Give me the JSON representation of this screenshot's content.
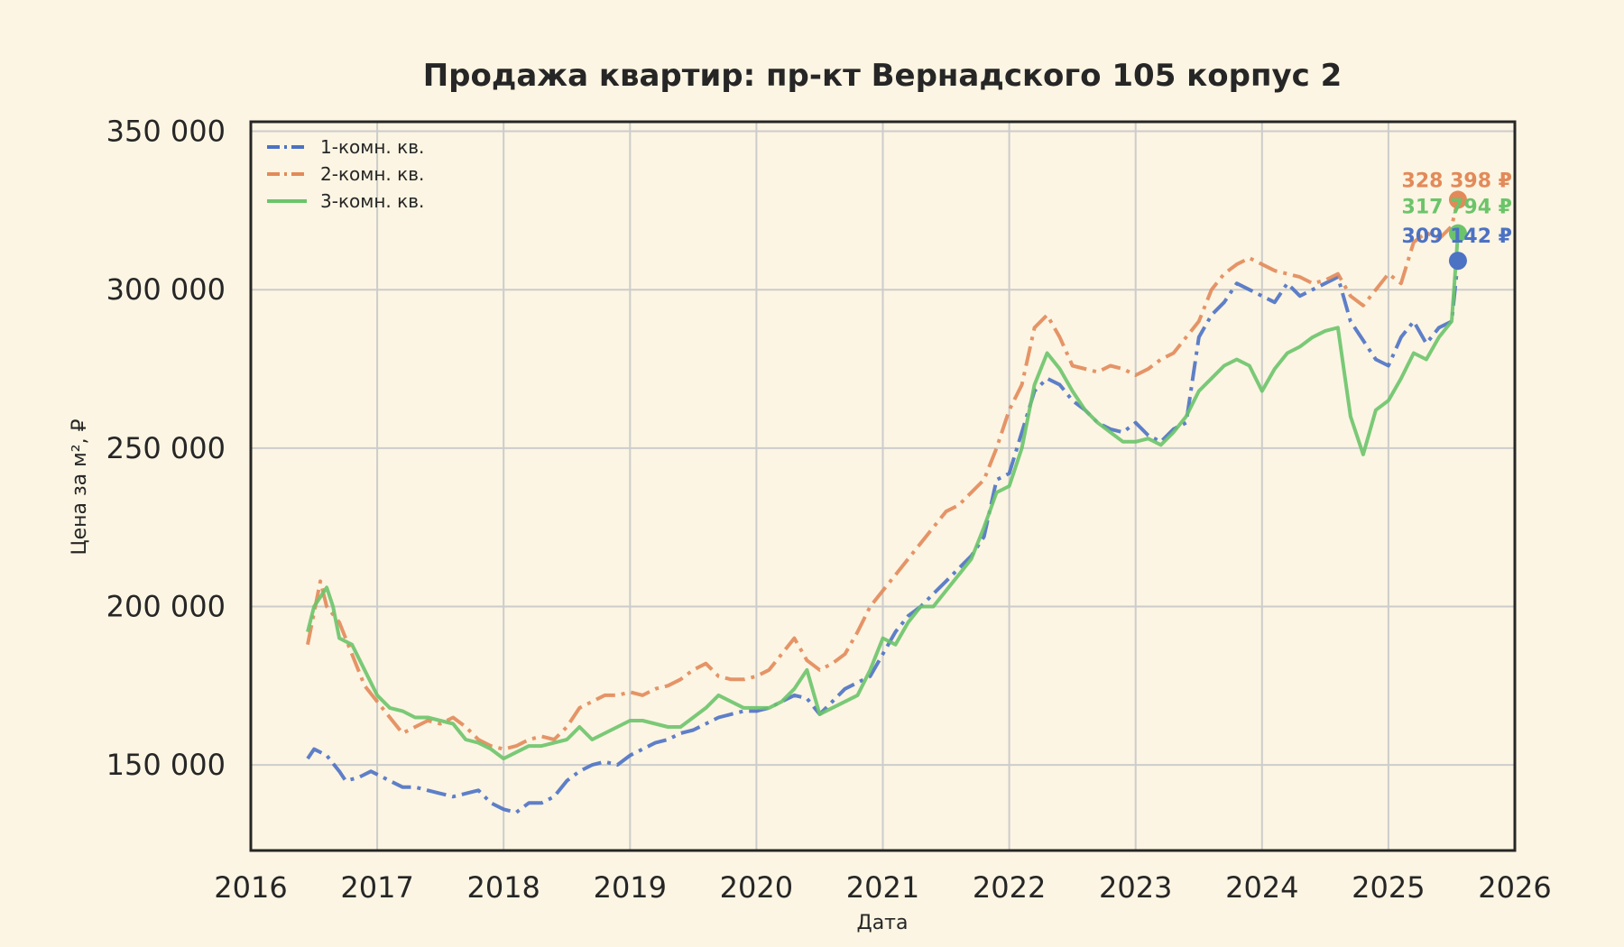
{
  "chart_data": {
    "type": "line",
    "title": "Продажа квартир: пр-кт Вернадского 105 корпус 2",
    "xlabel": "Дата",
    "ylabel": "Цена за м², ₽",
    "xlim": [
      2016.0,
      2026.0
    ],
    "ylim": [
      123000,
      353000
    ],
    "x_ticks": [
      "2016",
      "2017",
      "2018",
      "2019",
      "2020",
      "2021",
      "2022",
      "2023",
      "2024",
      "2025",
      "2026"
    ],
    "y_ticks": [
      {
        "value": 150000,
        "label": "150 000"
      },
      {
        "value": 200000,
        "label": "200 000"
      },
      {
        "value": 250000,
        "label": "250 000"
      },
      {
        "value": 300000,
        "label": "300 000"
      },
      {
        "value": 350000,
        "label": "350 000"
      }
    ],
    "grid": true,
    "legend_position": "top-left",
    "series": [
      {
        "name": "1-комн. кв.",
        "color": "#4c72c4",
        "dash": "dashdot",
        "x": [
          2016.45,
          2016.5,
          2016.6,
          2016.7,
          2016.75,
          2016.85,
          2016.95,
          2017.0,
          2017.1,
          2017.2,
          2017.3,
          2017.4,
          2017.5,
          2017.6,
          2017.7,
          2017.8,
          2017.9,
          2018.0,
          2018.1,
          2018.2,
          2018.3,
          2018.4,
          2018.5,
          2018.6,
          2018.7,
          2018.8,
          2018.9,
          2019.0,
          2019.1,
          2019.2,
          2019.3,
          2019.4,
          2019.5,
          2019.6,
          2019.7,
          2019.8,
          2019.9,
          2020.0,
          2020.1,
          2020.2,
          2020.3,
          2020.4,
          2020.5,
          2020.6,
          2020.7,
          2020.8,
          2020.9,
          2021.0,
          2021.1,
          2021.2,
          2021.3,
          2021.4,
          2021.5,
          2021.6,
          2021.7,
          2021.8,
          2021.9,
          2022.0,
          2022.1,
          2022.2,
          2022.3,
          2022.4,
          2022.5,
          2022.6,
          2022.7,
          2022.8,
          2022.9,
          2023.0,
          2023.1,
          2023.2,
          2023.3,
          2023.4,
          2023.5,
          2023.6,
          2023.7,
          2023.8,
          2023.9,
          2024.0,
          2024.1,
          2024.2,
          2024.3,
          2024.4,
          2024.5,
          2024.6,
          2024.7,
          2024.8,
          2024.9,
          2025.0,
          2025.1,
          2025.2,
          2025.3,
          2025.4,
          2025.5,
          2025.55
        ],
        "values": [
          152000,
          155000,
          153000,
          148000,
          145000,
          146000,
          148000,
          147000,
          145000,
          143000,
          143000,
          142000,
          141000,
          140000,
          141000,
          142000,
          138000,
          136000,
          135000,
          138000,
          138000,
          140000,
          145000,
          148000,
          150000,
          151000,
          150000,
          153000,
          155000,
          157000,
          158000,
          160000,
          161000,
          163000,
          165000,
          166000,
          167000,
          167000,
          168000,
          170000,
          172000,
          171000,
          166000,
          170000,
          174000,
          176000,
          178000,
          185000,
          192000,
          197000,
          200000,
          204000,
          208000,
          212000,
          216000,
          222000,
          240000,
          242000,
          255000,
          268000,
          272000,
          270000,
          265000,
          262000,
          258000,
          256000,
          255000,
          258000,
          254000,
          252000,
          256000,
          258000,
          285000,
          292000,
          296000,
          302000,
          300000,
          298000,
          296000,
          302000,
          298000,
          300000,
          302000,
          304000,
          290000,
          284000,
          278000,
          276000,
          285000,
          290000,
          283000,
          288000,
          290000,
          309142
        ]
      },
      {
        "name": "2-комн. кв.",
        "color": "#e28a59",
        "dash": "dashdot",
        "x": [
          2016.45,
          2016.55,
          2016.6,
          2016.7,
          2016.8,
          2016.9,
          2017.0,
          2017.1,
          2017.2,
          2017.3,
          2017.4,
          2017.5,
          2017.6,
          2017.7,
          2017.8,
          2017.9,
          2018.0,
          2018.1,
          2018.2,
          2018.3,
          2018.4,
          2018.5,
          2018.6,
          2018.7,
          2018.8,
          2018.9,
          2019.0,
          2019.1,
          2019.2,
          2019.3,
          2019.4,
          2019.5,
          2019.6,
          2019.7,
          2019.8,
          2019.9,
          2020.0,
          2020.1,
          2020.2,
          2020.3,
          2020.4,
          2020.5,
          2020.6,
          2020.7,
          2020.8,
          2020.9,
          2021.0,
          2021.1,
          2021.2,
          2021.3,
          2021.4,
          2021.5,
          2021.6,
          2021.7,
          2021.8,
          2021.9,
          2022.0,
          2022.1,
          2022.2,
          2022.3,
          2022.4,
          2022.5,
          2022.6,
          2022.7,
          2022.8,
          2022.9,
          2023.0,
          2023.1,
          2023.2,
          2023.3,
          2023.4,
          2023.5,
          2023.6,
          2023.7,
          2023.8,
          2023.9,
          2024.0,
          2024.1,
          2024.2,
          2024.3,
          2024.4,
          2024.5,
          2024.6,
          2024.7,
          2024.8,
          2024.9,
          2025.0,
          2025.1,
          2025.2,
          2025.3,
          2025.4,
          2025.5,
          2025.55
        ],
        "values": [
          188000,
          208000,
          200000,
          195000,
          185000,
          175000,
          170000,
          165000,
          160000,
          162000,
          164000,
          163000,
          165000,
          162000,
          158000,
          156000,
          155000,
          156000,
          158000,
          159000,
          158000,
          162000,
          168000,
          170000,
          172000,
          172000,
          173000,
          172000,
          174000,
          175000,
          177000,
          180000,
          182000,
          178000,
          177000,
          177000,
          178000,
          180000,
          185000,
          190000,
          183000,
          180000,
          182000,
          185000,
          192000,
          200000,
          205000,
          210000,
          215000,
          220000,
          225000,
          230000,
          232000,
          236000,
          240000,
          250000,
          262000,
          270000,
          288000,
          292000,
          285000,
          276000,
          275000,
          274000,
          276000,
          275000,
          273000,
          275000,
          278000,
          280000,
          285000,
          290000,
          300000,
          305000,
          308000,
          310000,
          308000,
          306000,
          305000,
          304000,
          302000,
          303000,
          305000,
          298000,
          295000,
          300000,
          305000,
          302000,
          315000,
          318000,
          316000,
          320000,
          328398
        ]
      },
      {
        "name": "3-комн. кв.",
        "color": "#6cc46a",
        "dash": "solid",
        "x": [
          2016.45,
          2016.5,
          2016.6,
          2016.65,
          2016.7,
          2016.8,
          2016.9,
          2017.0,
          2017.1,
          2017.2,
          2017.3,
          2017.4,
          2017.5,
          2017.6,
          2017.7,
          2017.8,
          2017.9,
          2018.0,
          2018.1,
          2018.2,
          2018.3,
          2018.4,
          2018.5,
          2018.6,
          2018.7,
          2018.8,
          2018.9,
          2019.0,
          2019.1,
          2019.2,
          2019.3,
          2019.4,
          2019.5,
          2019.6,
          2019.7,
          2019.8,
          2019.9,
          2020.0,
          2020.1,
          2020.2,
          2020.3,
          2020.4,
          2020.5,
          2020.6,
          2020.7,
          2020.8,
          2020.9,
          2021.0,
          2021.1,
          2021.2,
          2021.3,
          2021.4,
          2021.5,
          2021.6,
          2021.7,
          2021.8,
          2021.9,
          2022.0,
          2022.1,
          2022.2,
          2022.3,
          2022.4,
          2022.5,
          2022.6,
          2022.7,
          2022.8,
          2022.9,
          2023.0,
          2023.1,
          2023.2,
          2023.3,
          2023.4,
          2023.5,
          2023.6,
          2023.7,
          2023.8,
          2023.9,
          2024.0,
          2024.1,
          2024.2,
          2024.3,
          2024.4,
          2024.5,
          2024.6,
          2024.7,
          2024.8,
          2024.9,
          2025.0,
          2025.1,
          2025.2,
          2025.3,
          2025.4,
          2025.5,
          2025.55
        ],
        "values": [
          192000,
          200000,
          206000,
          200000,
          190000,
          188000,
          180000,
          172000,
          168000,
          167000,
          165000,
          165000,
          164000,
          163000,
          158000,
          157000,
          155000,
          152000,
          154000,
          156000,
          156000,
          157000,
          158000,
          162000,
          158000,
          160000,
          162000,
          164000,
          164000,
          163000,
          162000,
          162000,
          165000,
          168000,
          172000,
          170000,
          168000,
          168000,
          168000,
          170000,
          174000,
          180000,
          166000,
          168000,
          170000,
          172000,
          180000,
          190000,
          188000,
          195000,
          200000,
          200000,
          205000,
          210000,
          215000,
          225000,
          236000,
          238000,
          250000,
          270000,
          280000,
          275000,
          268000,
          262000,
          258000,
          255000,
          252000,
          252000,
          253000,
          251000,
          255000,
          260000,
          268000,
          272000,
          276000,
          278000,
          276000,
          268000,
          275000,
          280000,
          282000,
          285000,
          287000,
          288000,
          260000,
          248000,
          262000,
          265000,
          272000,
          280000,
          278000,
          285000,
          290000,
          317794
        ]
      }
    ],
    "end_labels": [
      {
        "series": 1,
        "text": "328 398 ₽",
        "value": 328398
      },
      {
        "series": 2,
        "text": "317 794 ₽",
        "value": 317794
      },
      {
        "series": 0,
        "text": "309 142 ₽",
        "value": 309142
      }
    ]
  }
}
